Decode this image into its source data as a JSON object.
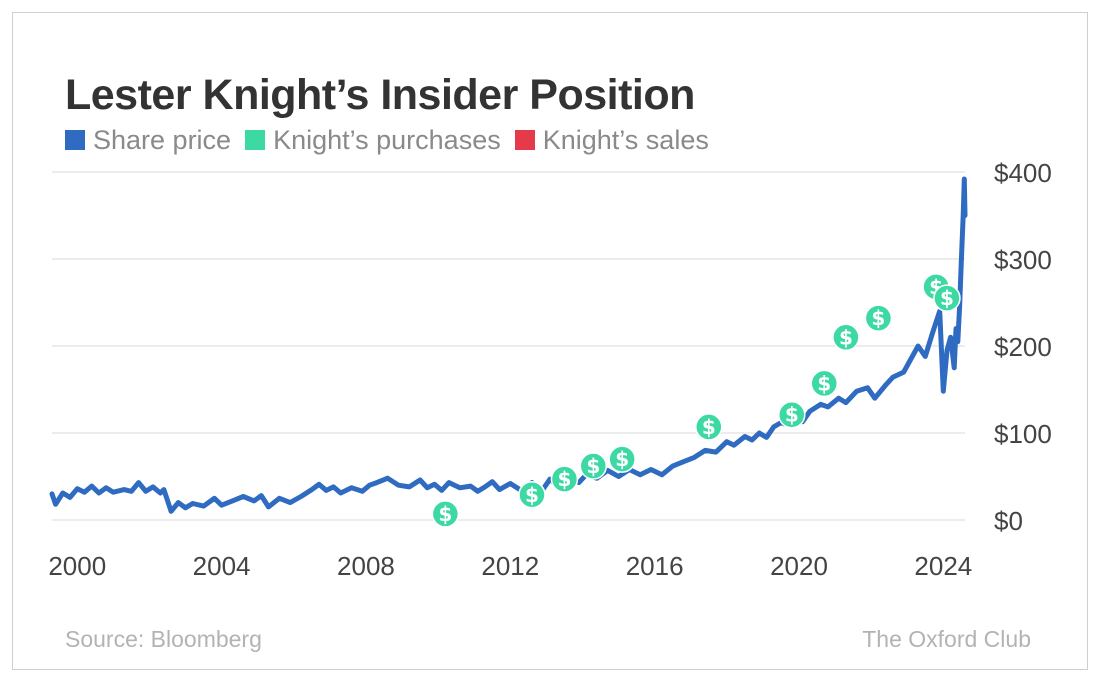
{
  "title": "Lester Knight’s Insider Position",
  "legend": [
    {
      "label": "Share price",
      "color": "#2e6bc1"
    },
    {
      "label": "Knight’s purchases",
      "color": "#3dd9a3"
    },
    {
      "label": "Knight’s sales",
      "color": "#e53a4a"
    }
  ],
  "source": "Source: Bloomberg",
  "brand": "The Oxford Club",
  "chart_data": {
    "type": "line",
    "title": "Lester Knight’s Insider Position",
    "xlabel": "",
    "ylabel": "",
    "xlim": [
      1999.3,
      2024.6
    ],
    "ylim": [
      0,
      400
    ],
    "x_ticks": [
      2000,
      2004,
      2008,
      2012,
      2016,
      2020,
      2024
    ],
    "y_ticks": [
      0,
      100,
      200,
      300,
      400
    ],
    "y_tick_labels": [
      "$0",
      "$100",
      "$200",
      "$300",
      "$400"
    ],
    "grid": true,
    "series": [
      {
        "name": "Share price",
        "color": "#2e6bc1",
        "points": [
          [
            1999.3,
            30
          ],
          [
            1999.4,
            18
          ],
          [
            1999.6,
            31
          ],
          [
            1999.8,
            26
          ],
          [
            2000.0,
            36
          ],
          [
            2000.2,
            32
          ],
          [
            2000.4,
            39
          ],
          [
            2000.6,
            31
          ],
          [
            2000.8,
            37
          ],
          [
            2001.0,
            32
          ],
          [
            2001.3,
            35
          ],
          [
            2001.5,
            33
          ],
          [
            2001.7,
            43
          ],
          [
            2001.9,
            33
          ],
          [
            2002.1,
            38
          ],
          [
            2002.3,
            31
          ],
          [
            2002.4,
            35
          ],
          [
            2002.6,
            10
          ],
          [
            2002.8,
            20
          ],
          [
            2003.0,
            14
          ],
          [
            2003.2,
            19
          ],
          [
            2003.5,
            16
          ],
          [
            2003.8,
            25
          ],
          [
            2004.0,
            17
          ],
          [
            2004.3,
            22
          ],
          [
            2004.6,
            27
          ],
          [
            2004.9,
            22
          ],
          [
            2005.1,
            28
          ],
          [
            2005.3,
            15
          ],
          [
            2005.6,
            25
          ],
          [
            2005.9,
            20
          ],
          [
            2006.2,
            27
          ],
          [
            2006.5,
            35
          ],
          [
            2006.7,
            41
          ],
          [
            2006.9,
            34
          ],
          [
            2007.1,
            38
          ],
          [
            2007.3,
            31
          ],
          [
            2007.6,
            37
          ],
          [
            2007.9,
            33
          ],
          [
            2008.1,
            40
          ],
          [
            2008.3,
            43
          ],
          [
            2008.6,
            48
          ],
          [
            2008.9,
            40
          ],
          [
            2009.2,
            38
          ],
          [
            2009.5,
            46
          ],
          [
            2009.7,
            37
          ],
          [
            2009.9,
            41
          ],
          [
            2010.1,
            34
          ],
          [
            2010.3,
            43
          ],
          [
            2010.6,
            37
          ],
          [
            2010.9,
            39
          ],
          [
            2011.1,
            33
          ],
          [
            2011.3,
            38
          ],
          [
            2011.5,
            44
          ],
          [
            2011.7,
            35
          ],
          [
            2012.0,
            42
          ],
          [
            2012.3,
            34
          ],
          [
            2012.6,
            43
          ],
          [
            2012.9,
            35
          ],
          [
            2013.1,
            47
          ],
          [
            2013.3,
            39
          ],
          [
            2013.6,
            48
          ],
          [
            2013.9,
            43
          ],
          [
            2014.1,
            52
          ],
          [
            2014.4,
            48
          ],
          [
            2014.7,
            57
          ],
          [
            2015.0,
            50
          ],
          [
            2015.3,
            58
          ],
          [
            2015.6,
            52
          ],
          [
            2015.9,
            58
          ],
          [
            2016.2,
            52
          ],
          [
            2016.5,
            62
          ],
          [
            2016.8,
            67
          ],
          [
            2017.1,
            72
          ],
          [
            2017.4,
            80
          ],
          [
            2017.7,
            78
          ],
          [
            2018.0,
            90
          ],
          [
            2018.2,
            86
          ],
          [
            2018.5,
            96
          ],
          [
            2018.7,
            92
          ],
          [
            2018.9,
            100
          ],
          [
            2019.1,
            95
          ],
          [
            2019.3,
            107
          ],
          [
            2019.5,
            112
          ],
          [
            2019.7,
            109
          ],
          [
            2019.9,
            116
          ],
          [
            2020.1,
            113
          ],
          [
            2020.3,
            125
          ],
          [
            2020.6,
            133
          ],
          [
            2020.8,
            130
          ],
          [
            2021.1,
            140
          ],
          [
            2021.3,
            135
          ],
          [
            2021.6,
            148
          ],
          [
            2021.9,
            152
          ],
          [
            2022.1,
            140
          ],
          [
            2022.4,
            155
          ],
          [
            2022.6,
            164
          ],
          [
            2022.9,
            170
          ],
          [
            2023.1,
            185
          ],
          [
            2023.3,
            200
          ],
          [
            2023.5,
            188
          ],
          [
            2023.7,
            215
          ],
          [
            2023.9,
            240
          ],
          [
            2024.0,
            148
          ],
          [
            2024.1,
            195
          ],
          [
            2024.2,
            210
          ],
          [
            2024.3,
            175
          ],
          [
            2024.35,
            220
          ],
          [
            2024.4,
            205
          ],
          [
            2024.45,
            245
          ],
          [
            2024.5,
            300
          ],
          [
            2024.55,
            350
          ],
          [
            2024.58,
            392
          ],
          [
            2024.6,
            350
          ]
        ]
      }
    ],
    "purchases": [
      [
        2010.2,
        7
      ],
      [
        2012.6,
        29
      ],
      [
        2013.5,
        47
      ],
      [
        2014.3,
        62
      ],
      [
        2015.1,
        70
      ],
      [
        2017.5,
        107
      ],
      [
        2019.8,
        121
      ],
      [
        2020.7,
        157
      ],
      [
        2021.3,
        210
      ],
      [
        2022.2,
        232
      ],
      [
        2023.8,
        268
      ],
      [
        2024.1,
        255
      ]
    ],
    "sales": []
  }
}
